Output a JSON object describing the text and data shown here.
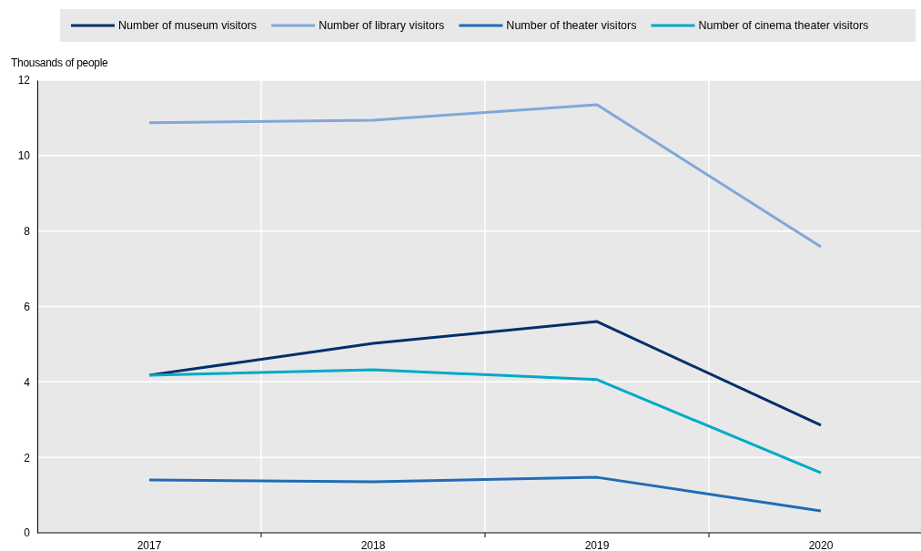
{
  "chart_data": {
    "type": "line",
    "ylabel": "Thousands of people",
    "categories": [
      "2017",
      "2018",
      "2019",
      "2020"
    ],
    "ylim": [
      0,
      12
    ],
    "yticks": [
      0,
      2,
      4,
      6,
      8,
      10,
      12
    ],
    "grid": true,
    "legend": "top",
    "marker": "none",
    "line_style": "solid",
    "series": [
      {
        "name": "Number of museum visitors",
        "color": "#002f6c",
        "values": [
          4.18,
          5.02,
          5.6,
          2.85
        ]
      },
      {
        "name": "Number of library visitors",
        "color": "#7fa8d9",
        "values": [
          10.87,
          10.94,
          11.35,
          7.58
        ]
      },
      {
        "name": "Number of theater visitors",
        "color": "#1f6db5",
        "values": [
          1.4,
          1.35,
          1.47,
          0.58
        ]
      },
      {
        "name": "Number of cinema theater visitors",
        "color": "#00a9c9",
        "values": [
          4.18,
          4.32,
          4.06,
          1.59
        ]
      }
    ]
  }
}
